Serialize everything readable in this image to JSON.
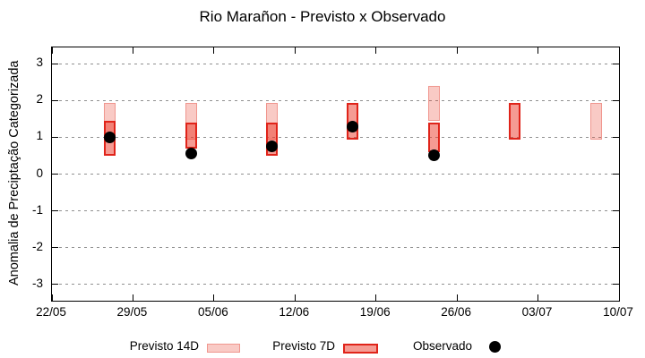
{
  "title": "Rio Marañon - Previsto x Observado",
  "y_axis": {
    "label": "Anomalia de Preciptação Categorizada",
    "tick_values": [
      3,
      2,
      1,
      0,
      -1,
      -2,
      -3
    ],
    "min": -3.45,
    "max": 3.45
  },
  "x_axis": {
    "tick_labels": [
      "22/05",
      "29/05",
      "05/06",
      "12/06",
      "19/06",
      "26/06",
      "03/07",
      "10/07"
    ],
    "tick_day_offsets": [
      0,
      7,
      14,
      21,
      28,
      35,
      42,
      49
    ],
    "span_days": 49
  },
  "legend": {
    "previsto_14d": "Previsto 14D",
    "previsto_7d": "Previsto 7D",
    "observado": "Observado"
  },
  "colors": {
    "previsto_14d_fill": "rgba(233,60,40,0.27)",
    "previsto_14d_border": "#f0968e",
    "previsto_7d_fill": "rgba(235,55,40,0.5)",
    "previsto_7d_border": "#e0241a",
    "observado": "#000000",
    "grid": "#909090",
    "axis": "#000000"
  },
  "chart_data": {
    "type": "bar",
    "title": "Rio Marañon - Previsto x Observado",
    "ylabel": "Anomalia de Preciptação Categorizada",
    "ylim": [
      -3.45,
      3.45
    ],
    "grid": "horizontal-dashed",
    "legend_position": "bottom",
    "x_dates": [
      "27/05",
      "03/06",
      "10/06",
      "17/06",
      "24/06",
      "01/07",
      "08/07"
    ],
    "x_day_offsets": [
      5,
      12,
      19,
      26,
      33,
      40,
      47
    ],
    "series": [
      {
        "name": "Previsto 14D",
        "kind": "range",
        "ranges": [
          [
            0.95,
            1.95
          ],
          [
            0.95,
            1.95
          ],
          [
            0.95,
            1.95
          ],
          null,
          [
            1.45,
            2.4
          ],
          null,
          [
            0.95,
            1.95
          ]
        ]
      },
      {
        "name": "Previsto 7D",
        "kind": "range",
        "ranges": [
          [
            0.5,
            1.45
          ],
          [
            0.7,
            1.4
          ],
          [
            0.5,
            1.4
          ],
          [
            0.95,
            1.95
          ],
          [
            0.6,
            1.4
          ],
          [
            0.95,
            1.95
          ],
          null
        ]
      },
      {
        "name": "Observado",
        "kind": "point",
        "values": [
          1.0,
          0.55,
          0.75,
          1.3,
          0.5,
          null,
          null
        ]
      }
    ]
  }
}
